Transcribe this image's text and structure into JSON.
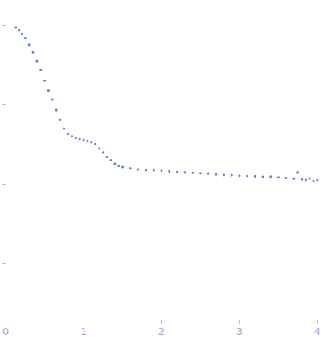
{
  "chart_data": {
    "type": "scatter",
    "color": "#3a67b8",
    "marker": "circle",
    "log": "y",
    "tick_labels": "x",
    "grid": false,
    "xlim": [
      0,
      4
    ],
    "xticks": [
      0,
      1,
      2,
      3
    ],
    "ylim": [
      0.0002,
      2
    ],
    "yticks": [
      0.001,
      0.01,
      0.1,
      1
    ],
    "x": [
      0.13,
      0.17,
      0.21,
      0.25,
      0.3,
      0.35,
      0.4,
      0.45,
      0.5,
      0.55,
      0.6,
      0.65,
      0.7,
      0.75,
      0.8,
      0.85,
      0.9,
      0.95,
      1.0,
      1.05,
      1.1,
      1.15,
      1.2,
      1.25,
      1.3,
      1.35,
      1.4,
      1.45,
      1.5,
      1.6,
      1.7,
      1.8,
      1.9,
      2.0,
      2.1,
      2.2,
      2.3,
      2.4,
      2.5,
      2.6,
      2.7,
      2.8,
      2.9,
      3.0,
      3.1,
      3.2,
      3.3,
      3.4,
      3.5,
      3.6,
      3.7,
      3.75,
      3.8,
      3.85,
      3.9,
      3.95,
      4.0
    ],
    "values": [
      0.93,
      0.86,
      0.77,
      0.68,
      0.56,
      0.45,
      0.35,
      0.27,
      0.2,
      0.15,
      0.115,
      0.085,
      0.064,
      0.05,
      0.043,
      0.04,
      0.038,
      0.037,
      0.036,
      0.035,
      0.034,
      0.032,
      0.028,
      0.025,
      0.022,
      0.02,
      0.018,
      0.017,
      0.0164,
      0.0158,
      0.0153,
      0.015,
      0.0149,
      0.0147,
      0.0145,
      0.0142,
      0.014,
      0.0139,
      0.0137,
      0.0136,
      0.0133,
      0.0131,
      0.013,
      0.0128,
      0.0127,
      0.0126,
      0.0124,
      0.0125,
      0.0122,
      0.012,
      0.0118,
      0.014,
      0.0115,
      0.0113,
      0.0118,
      0.011,
      0.0113
    ]
  }
}
